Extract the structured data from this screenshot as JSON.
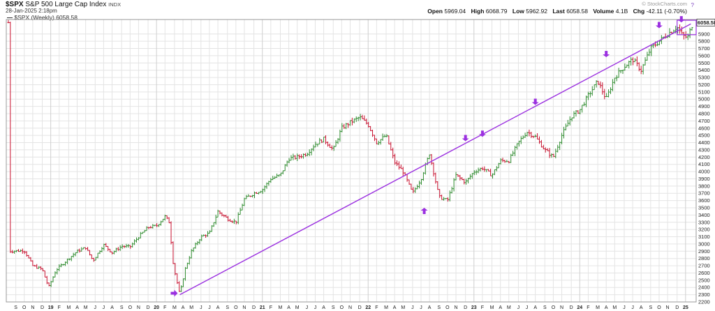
{
  "header": {
    "symbol": "$SPX",
    "name": "S&P 500 Large Cap Index",
    "exchange": "INDX",
    "datetime": "28-Jan-2025 2:18pm",
    "legend": "$SPX (Weekly) 6058.58",
    "watermark": "© StockCharts.com",
    "question_mark": "?",
    "open_label": "Open",
    "open": "5969.04",
    "high_label": "High",
    "high": "6068.79",
    "low_label": "Low",
    "low": "5962.92",
    "last_label": "Last",
    "last": "6058.58",
    "volume_label": "Volume",
    "volume": "4.1B",
    "chg_label": "Chg",
    "chg": "-42.11 (-0.70%)"
  },
  "chart_data": {
    "type": "line",
    "title": "",
    "xlabel": "",
    "ylabel": "",
    "ylim": [
      2200,
      6100
    ],
    "y_ticks": [
      2200,
      2300,
      2400,
      2500,
      2600,
      2700,
      2800,
      2900,
      3000,
      3100,
      3200,
      3300,
      3400,
      3500,
      3600,
      3700,
      3800,
      3900,
      4000,
      4100,
      4200,
      4300,
      4400,
      4500,
      4600,
      4700,
      4800,
      4900,
      5000,
      5100,
      5200,
      5300,
      5400,
      5500,
      5600,
      5700,
      5800,
      5900
    ],
    "last_value_label": "6058.58",
    "x_labels": [
      {
        "label": "S",
        "t": 2018.67
      },
      {
        "label": "O",
        "t": 2018.75
      },
      {
        "label": "N",
        "t": 2018.83
      },
      {
        "label": "D",
        "t": 2018.92
      },
      {
        "label": "19",
        "t": 2019.0,
        "year": true
      },
      {
        "label": "F",
        "t": 2019.08
      },
      {
        "label": "M",
        "t": 2019.17
      },
      {
        "label": "A",
        "t": 2019.25
      },
      {
        "label": "M",
        "t": 2019.33
      },
      {
        "label": "J",
        "t": 2019.42
      },
      {
        "label": "J",
        "t": 2019.5
      },
      {
        "label": "A",
        "t": 2019.58
      },
      {
        "label": "S",
        "t": 2019.67
      },
      {
        "label": "O",
        "t": 2019.75
      },
      {
        "label": "N",
        "t": 2019.83
      },
      {
        "label": "D",
        "t": 2019.92
      },
      {
        "label": "20",
        "t": 2020.0,
        "year": true
      },
      {
        "label": "F",
        "t": 2020.08
      },
      {
        "label": "M",
        "t": 2020.17
      },
      {
        "label": "A",
        "t": 2020.25
      },
      {
        "label": "M",
        "t": 2020.33
      },
      {
        "label": "J",
        "t": 2020.42
      },
      {
        "label": "J",
        "t": 2020.5
      },
      {
        "label": "A",
        "t": 2020.58
      },
      {
        "label": "S",
        "t": 2020.67
      },
      {
        "label": "O",
        "t": 2020.75
      },
      {
        "label": "N",
        "t": 2020.83
      },
      {
        "label": "D",
        "t": 2020.92
      },
      {
        "label": "21",
        "t": 2021.0,
        "year": true
      },
      {
        "label": "F",
        "t": 2021.08
      },
      {
        "label": "M",
        "t": 2021.17
      },
      {
        "label": "A",
        "t": 2021.25
      },
      {
        "label": "M",
        "t": 2021.33
      },
      {
        "label": "J",
        "t": 2021.42
      },
      {
        "label": "J",
        "t": 2021.5
      },
      {
        "label": "A",
        "t": 2021.58
      },
      {
        "label": "S",
        "t": 2021.67
      },
      {
        "label": "O",
        "t": 2021.75
      },
      {
        "label": "N",
        "t": 2021.83
      },
      {
        "label": "D",
        "t": 2021.92
      },
      {
        "label": "22",
        "t": 2022.0,
        "year": true
      },
      {
        "label": "F",
        "t": 2022.08
      },
      {
        "label": "M",
        "t": 2022.17
      },
      {
        "label": "A",
        "t": 2022.25
      },
      {
        "label": "M",
        "t": 2022.33
      },
      {
        "label": "J",
        "t": 2022.42
      },
      {
        "label": "J",
        "t": 2022.5
      },
      {
        "label": "A",
        "t": 2022.58
      },
      {
        "label": "S",
        "t": 2022.67
      },
      {
        "label": "O",
        "t": 2022.75
      },
      {
        "label": "N",
        "t": 2022.83
      },
      {
        "label": "D",
        "t": 2022.92
      },
      {
        "label": "23",
        "t": 2023.0,
        "year": true
      },
      {
        "label": "F",
        "t": 2023.08
      },
      {
        "label": "M",
        "t": 2023.17
      },
      {
        "label": "A",
        "t": 2023.25
      },
      {
        "label": "M",
        "t": 2023.33
      },
      {
        "label": "J",
        "t": 2023.42
      },
      {
        "label": "J",
        "t": 2023.5
      },
      {
        "label": "A",
        "t": 2023.58
      },
      {
        "label": "S",
        "t": 2023.67
      },
      {
        "label": "O",
        "t": 2023.75
      },
      {
        "label": "N",
        "t": 2023.83
      },
      {
        "label": "D",
        "t": 2023.92
      },
      {
        "label": "24",
        "t": 2024.0,
        "year": true
      },
      {
        "label": "F",
        "t": 2024.08
      },
      {
        "label": "M",
        "t": 2024.17
      },
      {
        "label": "A",
        "t": 2024.25
      },
      {
        "label": "M",
        "t": 2024.33
      },
      {
        "label": "J",
        "t": 2024.42
      },
      {
        "label": "J",
        "t": 2024.5
      },
      {
        "label": "A",
        "t": 2024.58
      },
      {
        "label": "S",
        "t": 2024.67
      },
      {
        "label": "O",
        "t": 2024.75
      },
      {
        "label": "N",
        "t": 2024.83
      },
      {
        "label": "D",
        "t": 2024.92
      },
      {
        "label": "25",
        "t": 2025.0,
        "year": true
      }
    ],
    "price_path": [
      [
        2018.6,
        2900
      ],
      [
        2018.75,
        2910
      ],
      [
        2018.83,
        2700
      ],
      [
        2018.92,
        2650
      ],
      [
        2018.98,
        2400
      ],
      [
        2019.05,
        2640
      ],
      [
        2019.17,
        2800
      ],
      [
        2019.25,
        2900
      ],
      [
        2019.33,
        2950
      ],
      [
        2019.4,
        2770
      ],
      [
        2019.5,
        2990
      ],
      [
        2019.58,
        2880
      ],
      [
        2019.67,
        2970
      ],
      [
        2019.75,
        2960
      ],
      [
        2019.83,
        3100
      ],
      [
        2019.92,
        3230
      ],
      [
        2020.0,
        3250
      ],
      [
        2020.08,
        3380
      ],
      [
        2020.12,
        3300
      ],
      [
        2020.16,
        2700
      ],
      [
        2020.22,
        2300
      ],
      [
        2020.27,
        2650
      ],
      [
        2020.33,
        2900
      ],
      [
        2020.42,
        3100
      ],
      [
        2020.5,
        3150
      ],
      [
        2020.58,
        3450
      ],
      [
        2020.67,
        3350
      ],
      [
        2020.75,
        3300
      ],
      [
        2020.83,
        3620
      ],
      [
        2020.92,
        3700
      ],
      [
        2021.0,
        3750
      ],
      [
        2021.08,
        3900
      ],
      [
        2021.17,
        3950
      ],
      [
        2021.25,
        4180
      ],
      [
        2021.33,
        4200
      ],
      [
        2021.42,
        4250
      ],
      [
        2021.5,
        4380
      ],
      [
        2021.58,
        4450
      ],
      [
        2021.67,
        4300
      ],
      [
        2021.75,
        4600
      ],
      [
        2021.83,
        4680
      ],
      [
        2021.92,
        4750
      ],
      [
        2022.0,
        4650
      ],
      [
        2022.08,
        4400
      ],
      [
        2022.17,
        4500
      ],
      [
        2022.25,
        4130
      ],
      [
        2022.33,
        4000
      ],
      [
        2022.42,
        3700
      ],
      [
        2022.5,
        3900
      ],
      [
        2022.58,
        4250
      ],
      [
        2022.67,
        3650
      ],
      [
        2022.75,
        3600
      ],
      [
        2022.83,
        3950
      ],
      [
        2022.92,
        3850
      ],
      [
        2023.0,
        4000
      ],
      [
        2023.08,
        4050
      ],
      [
        2023.17,
        3950
      ],
      [
        2023.25,
        4150
      ],
      [
        2023.33,
        4150
      ],
      [
        2023.42,
        4400
      ],
      [
        2023.5,
        4550
      ],
      [
        2023.58,
        4480
      ],
      [
        2023.67,
        4300
      ],
      [
        2023.75,
        4200
      ],
      [
        2023.83,
        4500
      ],
      [
        2023.92,
        4760
      ],
      [
        2024.0,
        4850
      ],
      [
        2024.08,
        5050
      ],
      [
        2024.17,
        5250
      ],
      [
        2024.25,
        5000
      ],
      [
        2024.33,
        5300
      ],
      [
        2024.42,
        5450
      ],
      [
        2024.5,
        5550
      ],
      [
        2024.58,
        5400
      ],
      [
        2024.67,
        5700
      ],
      [
        2024.75,
        5800
      ],
      [
        2024.83,
        5900
      ],
      [
        2024.92,
        6000
      ],
      [
        2024.97,
        5880
      ],
      [
        2025.02,
        5850
      ],
      [
        2025.07,
        6058
      ]
    ],
    "trendline": [
      [
        2020.22,
        2300
      ],
      [
        2025.05,
        6040
      ]
    ],
    "arrows": [
      {
        "t": 2020.2,
        "v": 2320,
        "dir": "right"
      },
      {
        "t": 2022.53,
        "v": 3500,
        "dir": "up"
      },
      {
        "t": 2022.92,
        "v": 4420,
        "dir": "down"
      },
      {
        "t": 2023.08,
        "v": 4480,
        "dir": "down"
      },
      {
        "t": 2023.58,
        "v": 4920,
        "dir": "down"
      },
      {
        "t": 2024.25,
        "v": 5580,
        "dir": "down"
      },
      {
        "t": 2024.75,
        "v": 5980,
        "dir": "down"
      },
      {
        "t": 2024.96,
        "v": 6060,
        "dir": "down"
      }
    ],
    "colors": {
      "up": "#2e8b2e",
      "down": "#c8102e",
      "annotation": "#9b30e0",
      "grid": "#e4e4e4",
      "last_box": "#f0c000"
    }
  }
}
